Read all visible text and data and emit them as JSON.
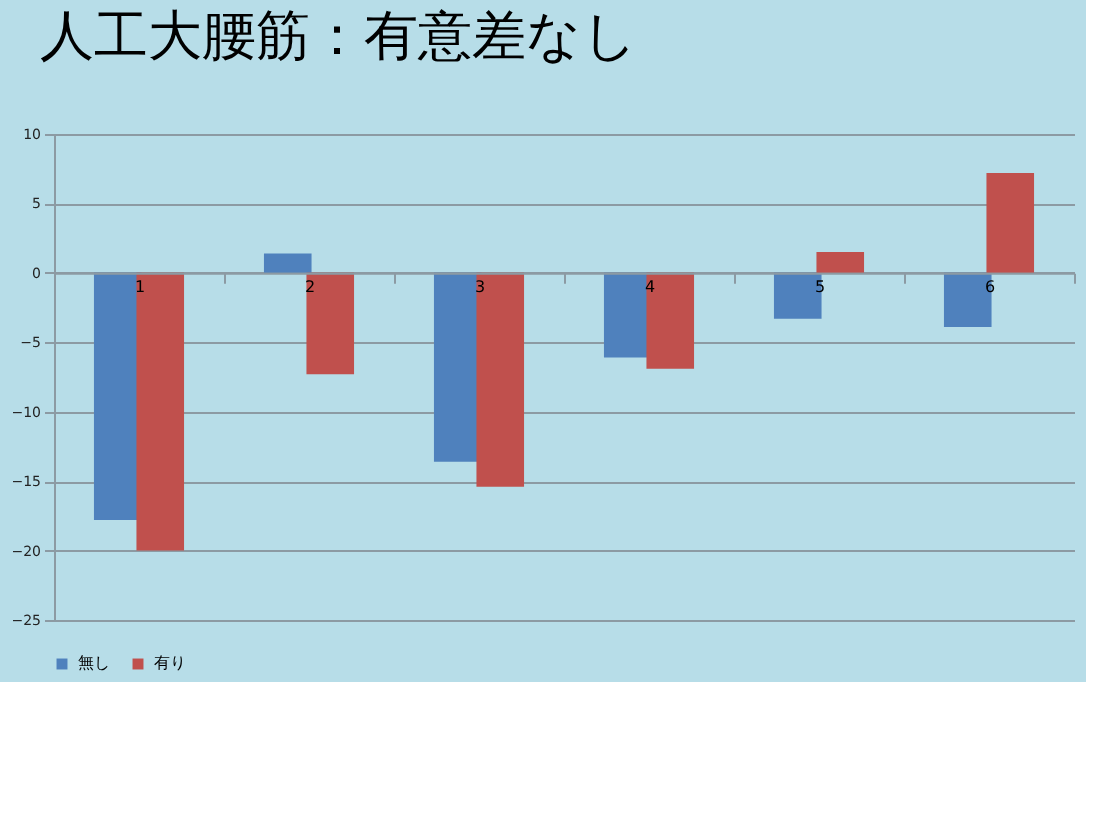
{
  "chart_data": {
    "type": "bar",
    "title": "人工大腰筋：有意差なし",
    "categories": [
      "1",
      "2",
      "3",
      "4",
      "5",
      "6"
    ],
    "series": [
      {
        "name": "無し",
        "color": "#4f81bd",
        "values": [
          -17.8,
          1.4,
          -13.6,
          -6.1,
          -3.3,
          -3.9
        ]
      },
      {
        "name": "有り",
        "color": "#c0504d",
        "values": [
          -20.0,
          -7.3,
          -15.4,
          -6.9,
          1.5,
          7.2
        ]
      }
    ],
    "ylim": [
      -25,
      10
    ],
    "yticks": [
      -25,
      -20,
      -15,
      -10,
      -5,
      0,
      5,
      10
    ],
    "grid": "y",
    "legend": "bottom"
  }
}
